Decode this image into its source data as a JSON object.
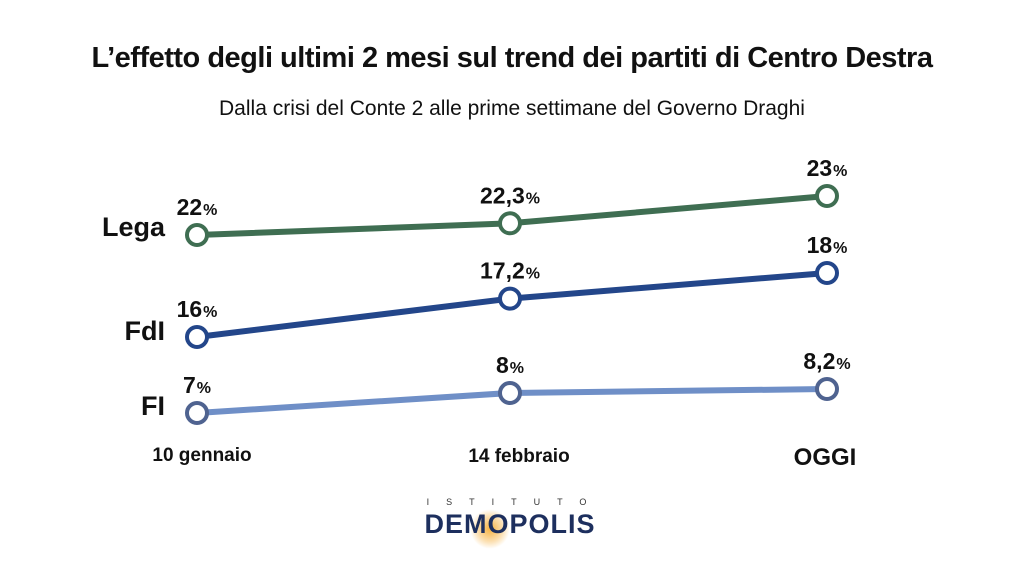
{
  "title": "L’effetto degli ultimi 2 mesi sul trend dei partiti di Centro Destra",
  "subtitle": "Dalla crisi del Conte 2 alle prime settimane del Governo Draghi",
  "logo": {
    "top": "ISTITUTO",
    "main": "DEMOPOLIS"
  },
  "chart_data": {
    "type": "line",
    "categories": [
      "10 gennaio",
      "14 febbraio",
      "OGGI"
    ],
    "unit": "%",
    "series": [
      {
        "name": "Lega",
        "color": "#3f6e52",
        "values": [
          22,
          22.3,
          23
        ],
        "labels": [
          "22",
          "22,3",
          "23"
        ]
      },
      {
        "name": "FdI",
        "color": "#23468a",
        "values": [
          16,
          17.2,
          18
        ],
        "labels": [
          "16",
          "17,2",
          "18"
        ]
      },
      {
        "name": "FI",
        "color": "#6f8fc7",
        "marker_color": "#4f6390",
        "values": [
          7,
          8,
          8.2
        ],
        "labels": [
          "7",
          "8",
          "8,2"
        ]
      }
    ]
  }
}
